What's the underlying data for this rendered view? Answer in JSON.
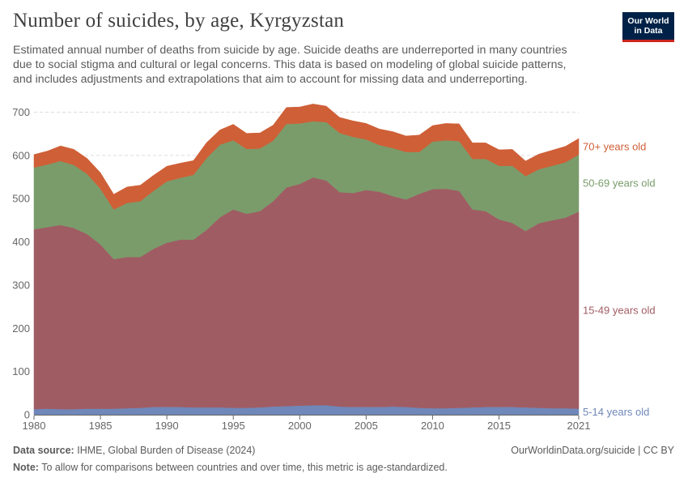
{
  "header": {
    "title": "Number of suicides, by age, Kyrgyzstan",
    "subtitle": "Estimated annual number of deaths from suicide by age. Suicide deaths are underreported in many countries due to social stigma and cultural or legal concerns. This data is based on modeling of global suicide patterns, and includes adjustments and extrapolations that aim to account for missing data and underreporting.",
    "logo_line1": "Our World",
    "logo_line2": "in Data"
  },
  "footer": {
    "source_label": "Data source:",
    "source_text": "IHME, Global Burden of Disease (2024)",
    "credit": "OurWorldinData.org/suicide | CC BY",
    "note_label": "Note:",
    "note_text": "To allow for comparisons between countries and over time, this metric is age-standardized."
  },
  "colors": {
    "c5_14": "#6f87b9",
    "c15_49": "#a05c63",
    "c50_69": "#7a9c6b",
    "c70": "#cf5f37",
    "grid": "#dddddd",
    "axis": "#666666"
  },
  "chart_data": {
    "type": "area",
    "stacked": true,
    "title": "Number of suicides, by age, Kyrgyzstan",
    "xlabel": "",
    "ylabel": "",
    "xlim": [
      1980,
      2021
    ],
    "ylim": [
      0,
      700
    ],
    "x_ticks": [
      "1980",
      "1985",
      "1990",
      "1995",
      "2000",
      "2005",
      "2010",
      "2015",
      "2021"
    ],
    "y_ticks": [
      "0",
      "100",
      "200",
      "300",
      "400",
      "500",
      "600",
      "700"
    ],
    "x": [
      1980,
      1981,
      1982,
      1983,
      1984,
      1985,
      1986,
      1987,
      1988,
      1989,
      1990,
      1991,
      1992,
      1993,
      1994,
      1995,
      1996,
      1997,
      1998,
      1999,
      2000,
      2001,
      2002,
      2003,
      2004,
      2005,
      2006,
      2007,
      2008,
      2009,
      2010,
      2011,
      2012,
      2013,
      2014,
      2015,
      2016,
      2017,
      2018,
      2019,
      2020,
      2021
    ],
    "series": [
      {
        "name": "5-14 years old",
        "label": "5-14 years old",
        "color": "#6f87b9",
        "values": [
          13,
          14,
          13,
          13,
          14,
          14,
          14,
          15,
          16,
          18,
          18,
          18,
          17,
          17,
          17,
          16,
          16,
          17,
          19,
          20,
          21,
          22,
          22,
          19,
          18,
          18,
          18,
          19,
          18,
          16,
          15,
          15,
          16,
          17,
          18,
          18,
          18,
          17,
          16,
          15,
          15,
          14
        ]
      },
      {
        "name": "15-49 years old",
        "label": "15-49 years old",
        "color": "#a05c63",
        "values": [
          416,
          420,
          426,
          419,
          404,
          380,
          346,
          350,
          349,
          366,
          380,
          387,
          388,
          411,
          440,
          459,
          449,
          454,
          475,
          506,
          513,
          527,
          520,
          496,
          495,
          502,
          498,
          487,
          480,
          495,
          507,
          508,
          502,
          458,
          453,
          434,
          426,
          408,
          427,
          435,
          441,
          456
        ]
      },
      {
        "name": "50-69 years old",
        "label": "50-69 years old",
        "color": "#7a9c6b",
        "values": [
          143,
          145,
          148,
          146,
          139,
          129,
          115,
          125,
          129,
          134,
          142,
          143,
          150,
          166,
          168,
          160,
          150,
          145,
          140,
          147,
          140,
          130,
          135,
          137,
          130,
          117,
          108,
          111,
          110,
          97,
          110,
          112,
          115,
          117,
          121,
          124,
          132,
          127,
          125,
          126,
          128,
          132
        ]
      },
      {
        "name": "70+ years old",
        "label": "70+ years old",
        "color": "#cf5f37",
        "values": [
          30,
          31,
          35,
          36,
          36,
          37,
          35,
          37,
          37,
          36,
          35,
          34,
          33,
          36,
          34,
          37,
          36,
          36,
          36,
          38,
          38,
          40,
          37,
          36,
          37,
          37,
          37,
          38,
          37,
          39,
          37,
          39,
          40,
          37,
          37,
          37,
          38,
          35,
          35,
          36,
          37,
          37
        ]
      }
    ]
  }
}
